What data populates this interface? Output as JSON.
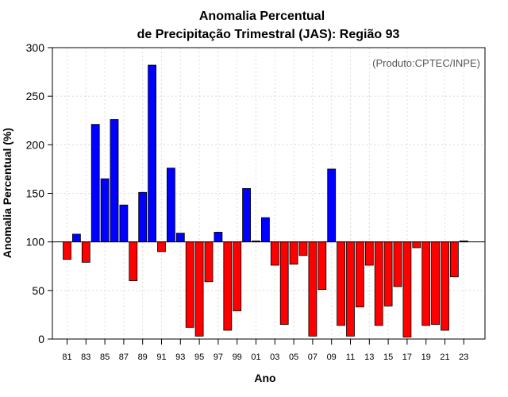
{
  "chart_data": {
    "type": "bar",
    "title_line1": "Anomalia Percentual",
    "title_line2": "de Precipitação Trimestral (JAS): Região 93",
    "credit": "(Produto:CPTEC/INPE)",
    "xlabel": "Ano",
    "ylabel": "Anomalia Percentual (%)",
    "ylim": [
      0,
      300
    ],
    "yticks": [
      0,
      50,
      100,
      150,
      200,
      250,
      300
    ],
    "baseline": 100,
    "categories": [
      "81",
      "82",
      "83",
      "84",
      "85",
      "86",
      "87",
      "88",
      "89",
      "90",
      "91",
      "92",
      "93",
      "94",
      "95",
      "96",
      "97",
      "98",
      "99",
      "00",
      "01",
      "02",
      "03",
      "04",
      "05",
      "06",
      "07",
      "08",
      "09",
      "10",
      "11",
      "12",
      "13",
      "14",
      "15",
      "16",
      "17",
      "18",
      "19",
      "20",
      "21",
      "22",
      "23"
    ],
    "xtick_labels": [
      "81",
      "83",
      "85",
      "87",
      "89",
      "91",
      "93",
      "95",
      "97",
      "99",
      "01",
      "03",
      "05",
      "07",
      "09",
      "11",
      "13",
      "15",
      "17",
      "19",
      "21",
      "23"
    ],
    "values": [
      82,
      108,
      79,
      221,
      165,
      226,
      138,
      60,
      151,
      282,
      90,
      176,
      109,
      12,
      3,
      59,
      110,
      9,
      29,
      155,
      101,
      125,
      76,
      15,
      77,
      86,
      3,
      51,
      175,
      14,
      3,
      33,
      76,
      14,
      34,
      54,
      2,
      94,
      14,
      15,
      9,
      64,
      101
    ],
    "colors": {
      "above": "#0000ff",
      "below": "#ff0000"
    },
    "grid": true,
    "legend": "none"
  }
}
